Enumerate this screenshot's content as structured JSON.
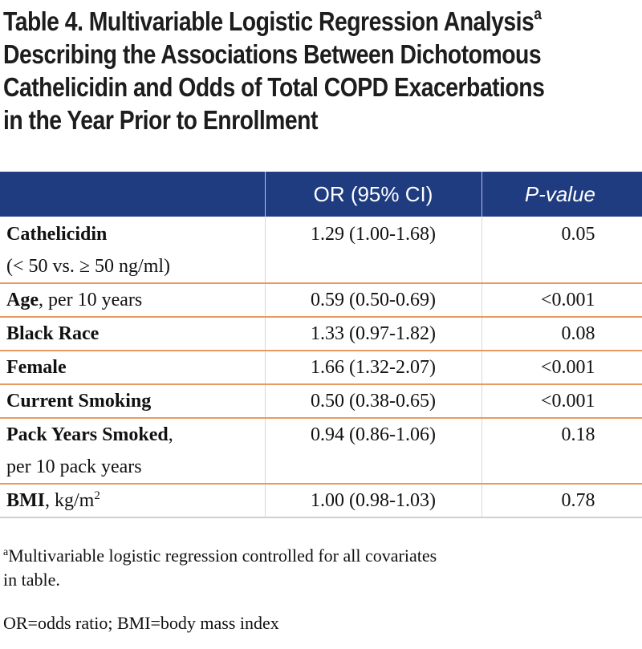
{
  "title": {
    "line1": "Table 4. Multivariable Logistic Regression Analysis",
    "line1_sup": "a",
    "line2": "Describing the Associations Between Dichotomous",
    "line3": "Cathelicidin and Odds of Total COPD Exacerbations",
    "line4": "in the Year Prior to Enrollment"
  },
  "header": {
    "variable": "",
    "or": "OR (95% CI)",
    "pvalue": "P-value"
  },
  "rows": [
    {
      "bold": "Cathelicidin",
      "rest": "",
      "line2": "(< 50 vs. ≥ 50 ng/ml)",
      "or": "1.29 (1.00-1.68)",
      "p": "0.05"
    },
    {
      "bold": "Age",
      "rest": ", per 10 years",
      "line2": "",
      "or": "0.59 (0.50-0.69)",
      "p": "<0.001"
    },
    {
      "bold": "Black Race",
      "rest": "",
      "line2": "",
      "or": "1.33 (0.97-1.82)",
      "p": "0.08"
    },
    {
      "bold": "Female",
      "rest": "",
      "line2": "",
      "or": "1.66 (1.32-2.07)",
      "p": "<0.001"
    },
    {
      "bold": "Current Smoking",
      "rest": "",
      "line2": "",
      "or": "0.50 (0.38-0.65)",
      "p": "<0.001"
    },
    {
      "bold": "Pack Years Smoked",
      "rest": ",",
      "line2": "per 10 pack years",
      "or": "0.94 (0.86-1.06)",
      "p": "0.18"
    },
    {
      "bold": "BMI",
      "rest": ", kg/m",
      "sup": "2",
      "line2": "",
      "or": "1.00 (0.98-1.03)",
      "p": "0.78"
    }
  ],
  "footnotes": {
    "a_mark": "a",
    "a_line1": "Multivariable logistic regression controlled for all covariates",
    "a_line2": "in table.",
    "abbrev": "OR=odds ratio; BMI=body mass index"
  },
  "colors": {
    "header_bg": "#1f3c80",
    "row_rule": "#e79a63"
  }
}
